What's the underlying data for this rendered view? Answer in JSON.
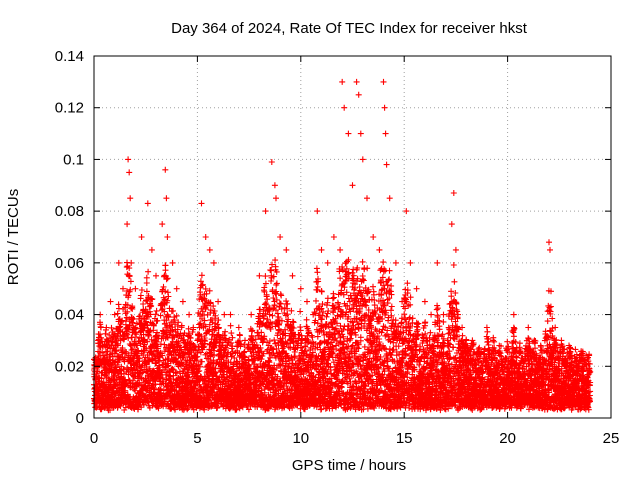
{
  "chart_data": {
    "type": "scatter",
    "title": "Day 364 of 2024, Rate Of TEC Index for receiver hkst",
    "xlabel": "GPS time / hours",
    "ylabel": "ROTI / TECUs",
    "xlim": [
      0,
      25
    ],
    "ylim": [
      0,
      0.14
    ],
    "x_ticks": [
      0,
      5,
      10,
      15,
      20,
      25
    ],
    "x_tick_labels": [
      "0",
      "5",
      "10",
      "15",
      "20",
      "25"
    ],
    "y_ticks": [
      0,
      0.02,
      0.04,
      0.06,
      0.08,
      0.1,
      0.12,
      0.14
    ],
    "y_tick_labels": [
      "0",
      "0.02",
      "0.04",
      "0.06",
      "0.08",
      "0.1",
      "0.12",
      "0.14"
    ],
    "grid": true,
    "marker": "+",
    "color": "#ff0000",
    "series": [
      {
        "name": "ROTI",
        "x": [
          0.1,
          0.2,
          0.3,
          0.4,
          0.5,
          0.6,
          0.8,
          1.0,
          1.2,
          1.4,
          1.6,
          1.65,
          1.7,
          1.75,
          1.8,
          2.0,
          2.3,
          2.6,
          2.8,
          3.0,
          3.3,
          3.45,
          3.5,
          3.55,
          3.8,
          4.0,
          4.3,
          4.6,
          4.8,
          5.0,
          5.2,
          5.4,
          5.6,
          5.8,
          6.0,
          6.3,
          6.6,
          7.0,
          7.3,
          7.6,
          8.0,
          8.3,
          8.6,
          8.75,
          8.8,
          9.0,
          9.3,
          9.6,
          10.0,
          10.3,
          10.6,
          10.8,
          11.0,
          11.3,
          11.6,
          11.9,
          12.0,
          12.1,
          12.3,
          12.5,
          12.7,
          12.8,
          12.9,
          13.0,
          13.2,
          13.5,
          13.8,
          14.0,
          14.05,
          14.1,
          14.15,
          14.3,
          14.6,
          14.9,
          15.1,
          15.3,
          15.6,
          16.0,
          16.3,
          16.6,
          16.9,
          17.1,
          17.3,
          17.4,
          17.5,
          17.6,
          17.8,
          18.0,
          18.3,
          18.6,
          19.0,
          19.3,
          19.6,
          20.0,
          20.3,
          20.6,
          21.0,
          21.3,
          21.6,
          22.0,
          22.05,
          22.1,
          22.3,
          22.6,
          23.0,
          23.3,
          23.6,
          23.9
        ],
        "y": [
          0.015,
          0.03,
          0.04,
          0.028,
          0.022,
          0.035,
          0.045,
          0.04,
          0.06,
          0.05,
          0.075,
          0.1,
          0.095,
          0.085,
          0.06,
          0.05,
          0.07,
          0.083,
          0.065,
          0.055,
          0.075,
          0.096,
          0.085,
          0.07,
          0.06,
          0.05,
          0.045,
          0.04,
          0.035,
          0.03,
          0.083,
          0.07,
          0.065,
          0.06,
          0.045,
          0.04,
          0.04,
          0.035,
          0.03,
          0.04,
          0.055,
          0.08,
          0.099,
          0.09,
          0.085,
          0.07,
          0.065,
          0.055,
          0.05,
          0.045,
          0.04,
          0.08,
          0.065,
          0.06,
          0.07,
          0.065,
          0.13,
          0.12,
          0.11,
          0.09,
          0.13,
          0.125,
          0.11,
          0.1,
          0.085,
          0.07,
          0.065,
          0.13,
          0.12,
          0.11,
          0.098,
          0.085,
          0.06,
          0.045,
          0.08,
          0.06,
          0.05,
          0.045,
          0.04,
          0.06,
          0.04,
          0.03,
          0.075,
          0.087,
          0.065,
          0.04,
          0.035,
          0.03,
          0.03,
          0.025,
          0.035,
          0.03,
          0.028,
          0.027,
          0.04,
          0.025,
          0.035,
          0.03,
          0.028,
          0.068,
          0.065,
          0.049,
          0.035,
          0.03,
          0.025,
          0.02,
          0.025,
          0.022
        ]
      }
    ]
  }
}
